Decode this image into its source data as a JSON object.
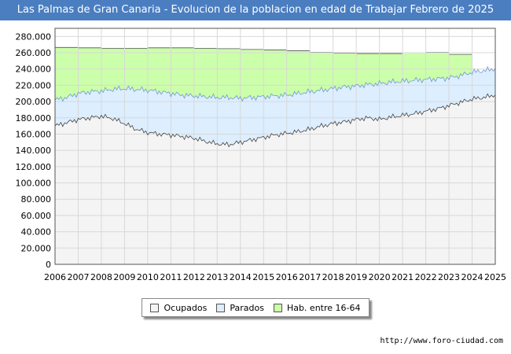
{
  "chart_data": {
    "type": "area",
    "title": "Las Palmas de Gran Canaria - Evolucion de la poblacion en edad de Trabajar Febrero de 2025",
    "xlabel": "",
    "ylabel": "",
    "ylim": [
      0,
      290000
    ],
    "xlim": [
      2006,
      2025
    ],
    "grid": true,
    "x_ticks": [
      "2006",
      "2007",
      "2008",
      "2009",
      "2010",
      "2011",
      "2012",
      "2013",
      "2014",
      "2015",
      "2016",
      "2017",
      "2018",
      "2019",
      "2020",
      "2021",
      "2022",
      "2023",
      "2024",
      "2025"
    ],
    "y_ticks": [
      {
        "value": 0,
        "label": "0"
      },
      {
        "value": 20000,
        "label": "20.000"
      },
      {
        "value": 40000,
        "label": "40.000"
      },
      {
        "value": 60000,
        "label": "60.000"
      },
      {
        "value": 80000,
        "label": "80.000"
      },
      {
        "value": 100000,
        "label": "100.000"
      },
      {
        "value": 120000,
        "label": "120.000"
      },
      {
        "value": 140000,
        "label": "140.000"
      },
      {
        "value": 160000,
        "label": "160.000"
      },
      {
        "value": 180000,
        "label": "180.000"
      },
      {
        "value": 200000,
        "label": "200.000"
      },
      {
        "value": 220000,
        "label": "220.000"
      },
      {
        "value": 240000,
        "label": "240.000"
      },
      {
        "value": 260000,
        "label": "260.000"
      },
      {
        "value": 280000,
        "label": "280.000"
      }
    ],
    "x": [
      2006,
      2006.5,
      2007,
      2007.5,
      2008,
      2008.5,
      2009,
      2009.5,
      2010,
      2010.5,
      2011,
      2011.5,
      2012,
      2012.5,
      2013,
      2013.5,
      2014,
      2014.5,
      2015,
      2015.5,
      2016,
      2016.5,
      2017,
      2017.5,
      2018,
      2018.5,
      2019,
      2019.5,
      2020,
      2020.5,
      2021,
      2021.5,
      2022,
      2022.5,
      2023,
      2023.5,
      2024,
      2024.5,
      2025
    ],
    "series": [
      {
        "name": "Hab. entre 16-64",
        "color": "#ccffaa",
        "x": [
          2006,
          2007,
          2008,
          2009,
          2010,
          2011,
          2012,
          2013,
          2014,
          2015,
          2016,
          2017,
          2018,
          2019,
          2020,
          2021,
          2022,
          2023,
          2024
        ],
        "values": [
          266500,
          266000,
          265500,
          265500,
          266000,
          266000,
          265500,
          265000,
          264000,
          263500,
          262500,
          260500,
          259500,
          259000,
          259000,
          260000,
          260500,
          258000,
          258000
        ]
      },
      {
        "name": "Parados",
        "color": "#ddeeff",
        "values": [
          202000,
          205000,
          210000,
          212000,
          213000,
          215000,
          216000,
          215000,
          214000,
          212000,
          210000,
          208000,
          207000,
          206000,
          205000,
          205000,
          204000,
          205000,
          206000,
          207000,
          208000,
          210000,
          212000,
          214000,
          216000,
          218000,
          219000,
          221000,
          222000,
          224000,
          225000,
          226000,
          227000,
          228000,
          229000,
          232000,
          236000,
          238000,
          240000
        ]
      },
      {
        "name": "Ocupados",
        "color": "#f4f4f4",
        "values": [
          170000,
          174000,
          178000,
          180000,
          182000,
          179000,
          173000,
          166000,
          162000,
          160000,
          159000,
          157000,
          155000,
          151000,
          148000,
          147000,
          150000,
          153000,
          156000,
          159000,
          161000,
          163000,
          166000,
          170000,
          173000,
          175000,
          178000,
          180000,
          178000,
          181000,
          183000,
          185000,
          188000,
          191000,
          195000,
          199000,
          203000,
          205000,
          208000
        ]
      }
    ]
  },
  "legend": {
    "ocupados": "Ocupados",
    "parados": "Parados",
    "hab": "Hab. entre 16-64"
  },
  "colors": {
    "title_bg": "#4a7ec0",
    "ocupados_line": "#444444",
    "parados_line": "#6e9ad0"
  },
  "source": "http://www.foro-ciudad.com"
}
